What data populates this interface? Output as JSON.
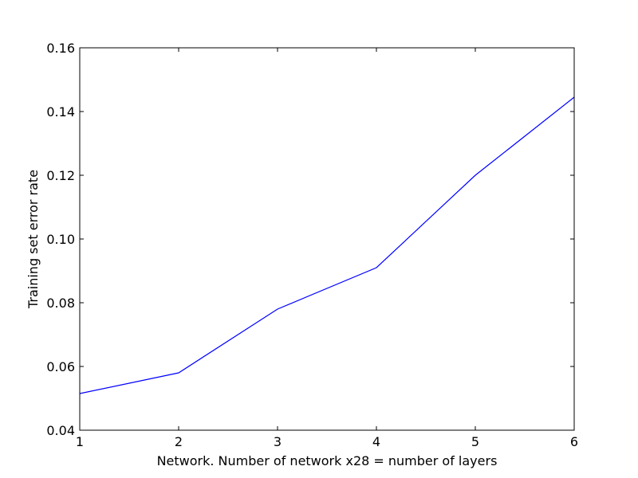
{
  "chart_data": {
    "type": "line",
    "title": "",
    "xlabel": "Network. Number of network x28 = number of layers",
    "ylabel": "Training set error rate",
    "xlim": [
      1,
      6
    ],
    "ylim": [
      0.04,
      0.16
    ],
    "grid": false,
    "x_ticks": [
      1,
      2,
      3,
      4,
      5,
      6
    ],
    "x_tick_labels": [
      "1",
      "2",
      "3",
      "4",
      "5",
      "6"
    ],
    "y_ticks": [
      0.04,
      0.06,
      0.08,
      0.1,
      0.12,
      0.14,
      0.16
    ],
    "y_tick_labels": [
      "0.04",
      "0.06",
      "0.08",
      "0.10",
      "0.12",
      "0.14",
      "0.16"
    ],
    "series": [
      {
        "color": "#0000ff",
        "x": [
          1,
          2,
          3,
          4,
          5,
          6
        ],
        "y": [
          0.0515,
          0.058,
          0.078,
          0.091,
          0.12,
          0.1445
        ]
      }
    ]
  }
}
